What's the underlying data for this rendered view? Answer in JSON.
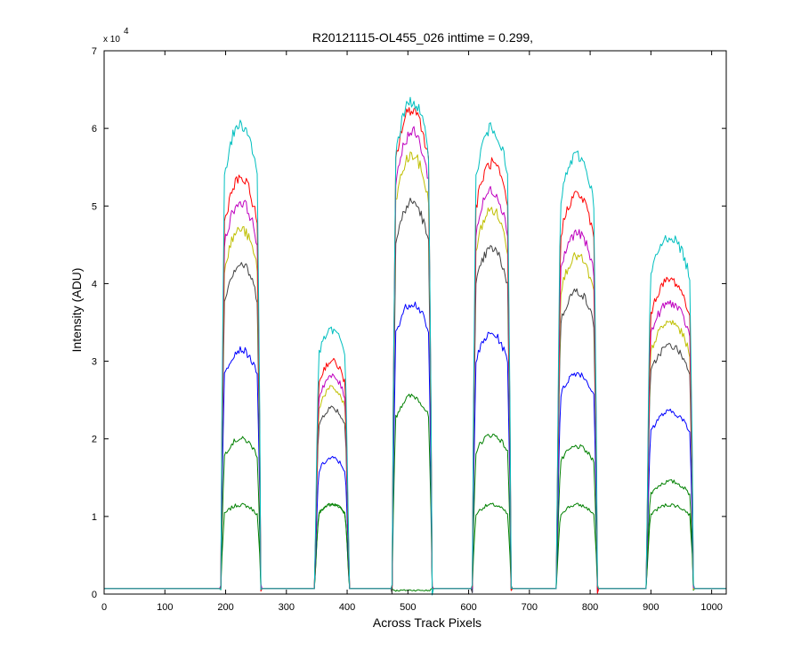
{
  "chart_data": {
    "type": "line",
    "title": "R20121115-OL455_026 inttime = 0.299,",
    "xlabel": "Across Track Pixels",
    "ylabel": "Intensity (ADU)",
    "y_multiplier": "x 10",
    "y_exponent": "4",
    "xlim": [
      0,
      1024
    ],
    "ylim": [
      0,
      7
    ],
    "xticks": [
      0,
      100,
      200,
      300,
      400,
      500,
      600,
      700,
      800,
      900,
      1000
    ],
    "xtick_labels": [
      "0",
      "100",
      "200",
      "300",
      "400",
      "500",
      "600",
      "700",
      "800",
      "900",
      "1000"
    ],
    "yticks": [
      0,
      1,
      2,
      3,
      4,
      5,
      6,
      7
    ],
    "ytick_labels": [
      "0",
      "1",
      "2",
      "3",
      "4",
      "5",
      "6",
      "7"
    ],
    "grid": false,
    "baseline": 0.07,
    "bands": [
      {
        "x_start": 192,
        "x_end": 258,
        "levels": [
          1.15,
          2.0,
          3.15,
          4.25,
          4.7,
          5.05,
          5.35,
          6.05
        ]
      },
      {
        "x_start": 347,
        "x_end": 403,
        "levels": [
          1.15,
          1.15,
          1.75,
          2.4,
          2.65,
          2.8,
          3.0,
          3.4
        ]
      },
      {
        "x_start": 474,
        "x_end": 540,
        "levels": [
          0.05,
          2.55,
          3.75,
          5.05,
          5.65,
          5.95,
          6.25,
          6.35
        ]
      },
      {
        "x_start": 606,
        "x_end": 670,
        "levels": [
          1.15,
          2.05,
          3.35,
          4.45,
          4.95,
          5.2,
          5.55,
          6.0
        ]
      },
      {
        "x_start": 745,
        "x_end": 812,
        "levels": [
          1.15,
          1.9,
          2.85,
          3.9,
          4.35,
          4.65,
          5.15,
          5.65
        ]
      },
      {
        "x_start": 893,
        "x_end": 970,
        "levels": [
          1.15,
          1.45,
          2.35,
          3.2,
          3.5,
          3.75,
          4.05,
          4.6
        ]
      }
    ],
    "series": [
      {
        "color": "#008000"
      },
      {
        "color": "#008000"
      },
      {
        "color": "#0000ff"
      },
      {
        "color": "#404040"
      },
      {
        "color": "#bfbf00"
      },
      {
        "color": "#bf00bf"
      },
      {
        "color": "#ff0000"
      },
      {
        "color": "#00bfbf"
      }
    ]
  }
}
